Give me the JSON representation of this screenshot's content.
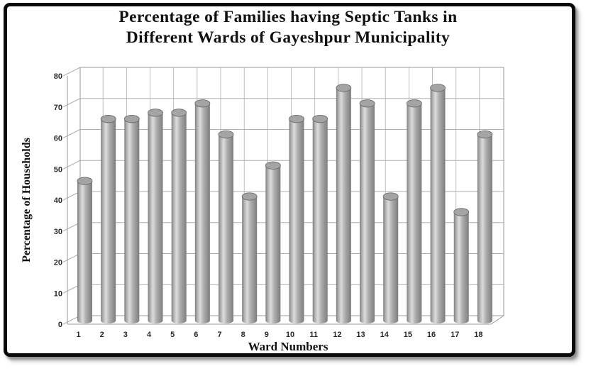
{
  "title": {
    "line1": "Percentage of Families having Septic Tanks in",
    "line2": "Different Wards of Gayeshpur Municipality"
  },
  "chart_data": {
    "type": "bar",
    "subtype": "3d-cylinder",
    "title": "Percentage of Families having Septic Tanks in Different Wards of Gayeshpur Municipality",
    "xlabel": "Ward Numbers",
    "ylabel": "Percentage of Households",
    "categories": [
      "1",
      "2",
      "3",
      "4",
      "5",
      "6",
      "7",
      "8",
      "9",
      "10",
      "11",
      "12",
      "13",
      "14",
      "15",
      "16",
      "17",
      "18"
    ],
    "values": [
      45,
      65,
      65,
      67,
      67,
      70,
      60,
      40,
      50,
      65,
      65,
      75,
      70,
      40,
      70,
      75,
      35,
      60
    ],
    "ylim": [
      0,
      80
    ],
    "yticks": [
      0,
      10,
      20,
      30,
      40,
      50,
      60,
      70,
      80
    ],
    "grid": true,
    "legend": "none"
  },
  "colors": {
    "background": "#ffffff",
    "frame": "#0a0a0a",
    "gridline": "#adadad",
    "wall_edge": "#9a9a9a",
    "bar_light": "#dcdcdc",
    "bar_mid": "#aeaeae",
    "bar_dark": "#7d7d7d",
    "bar_cap": "#a4a4a4",
    "bar_edge": "#6f6f6f",
    "text": "#111111"
  }
}
